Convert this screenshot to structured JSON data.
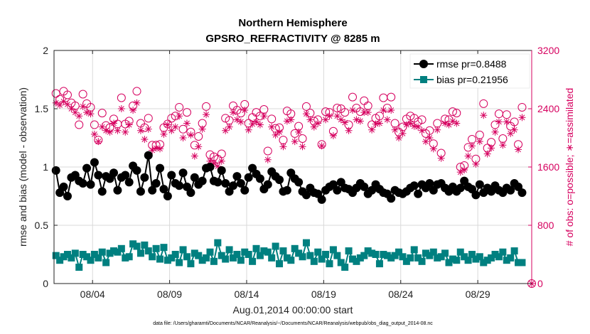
{
  "chart_data": {
    "type": "line",
    "title": "Northern Hemisphere",
    "subtitle": "GPSRO_REFRACTIVITY @ 8285 m",
    "xlabel": "Aug.01,2014 00:00:00 start",
    "ylabel": "rmse and bias (model - observation)",
    "y2label": "# of obs: o=possible; ∗=assimilated",
    "footnote": "data file: /Users/gharamti/Documents/NCAR/Reanalysis/~/Documents/NCAR/Reanalysis/webpub/obs_diag_output_2014-08.nc",
    "xlim": [
      1.5,
      32.5
    ],
    "ylim": [
      0,
      2
    ],
    "y2lim": [
      0,
      3200
    ],
    "x_ticks": [
      4,
      9,
      14,
      19,
      24,
      29
    ],
    "x_tick_labels": [
      "08/04",
      "08/09",
      "08/14",
      "08/19",
      "08/24",
      "08/29"
    ],
    "y_ticks": [
      0,
      0.5,
      1,
      1.5,
      2
    ],
    "y_tick_labels": [
      "0",
      "0.5",
      "1",
      "1.5",
      "2"
    ],
    "y2_ticks": [
      0,
      800,
      1600,
      2400,
      3200
    ],
    "y2_tick_labels": [
      "0",
      "800",
      "1600",
      "2400",
      "3200"
    ],
    "grid": true,
    "legend_position": "top-right",
    "colors": {
      "rmse": "#000000",
      "bias": "#008080",
      "obs": "#d6005f",
      "grid": "#d9d9d9",
      "axis": "#222222"
    },
    "x": [
      1.625,
      1.875,
      2.125,
      2.375,
      2.625,
      2.875,
      3.125,
      3.375,
      3.625,
      3.875,
      4.125,
      4.375,
      4.625,
      4.875,
      5.125,
      5.375,
      5.625,
      5.875,
      6.125,
      6.375,
      6.625,
      6.875,
      7.125,
      7.375,
      7.625,
      7.875,
      8.125,
      8.375,
      8.625,
      8.875,
      9.125,
      9.375,
      9.625,
      9.875,
      10.125,
      10.375,
      10.625,
      10.875,
      11.125,
      11.375,
      11.625,
      11.875,
      12.125,
      12.375,
      12.625,
      12.875,
      13.125,
      13.375,
      13.625,
      13.875,
      14.125,
      14.375,
      14.625,
      14.875,
      15.125,
      15.375,
      15.625,
      15.875,
      16.125,
      16.375,
      16.625,
      16.875,
      17.125,
      17.375,
      17.625,
      17.875,
      18.125,
      18.375,
      18.625,
      18.875,
      19.125,
      19.375,
      19.625,
      19.875,
      20.125,
      20.375,
      20.625,
      20.875,
      21.125,
      21.375,
      21.625,
      21.875,
      22.125,
      22.375,
      22.625,
      22.875,
      23.125,
      23.375,
      23.625,
      23.875,
      24.125,
      24.375,
      24.625,
      24.875,
      25.125,
      25.375,
      25.625,
      25.875,
      26.125,
      26.375,
      26.625,
      26.875,
      27.125,
      27.375,
      27.625,
      27.875,
      28.125,
      28.375,
      28.625,
      28.875,
      29.125,
      29.375,
      29.625,
      29.875,
      30.125,
      30.375,
      30.625,
      30.875,
      31.125,
      31.375,
      31.625,
      31.875
    ],
    "series": [
      {
        "name": "rmse pr=0.8488",
        "axis": "left",
        "marker": "filled-circle",
        "values": [
          0.97,
          0.78,
          0.83,
          0.75,
          0.91,
          0.93,
          0.88,
          0.86,
          0.99,
          0.85,
          1.04,
          0.93,
          0.79,
          0.92,
          0.9,
          0.95,
          0.8,
          0.91,
          0.93,
          0.87,
          1.01,
          0.97,
          0.79,
          0.91,
          1.1,
          0.8,
          0.86,
          0.99,
          0.81,
          0.75,
          0.93,
          0.86,
          0.84,
          0.95,
          0.83,
          0.78,
          0.91,
          0.85,
          0.88,
          0.99,
          1.0,
          0.88,
          0.87,
          0.97,
          0.86,
          0.79,
          0.84,
          0.92,
          0.86,
          0.8,
          0.91,
          0.99,
          0.94,
          0.9,
          0.81,
          0.85,
          0.96,
          0.92,
          0.89,
          0.79,
          0.8,
          0.95,
          0.9,
          0.87,
          0.79,
          0.76,
          0.82,
          0.78,
          0.77,
          0.72,
          0.8,
          0.83,
          0.85,
          0.8,
          0.87,
          0.82,
          0.81,
          0.78,
          0.82,
          0.86,
          0.83,
          0.77,
          0.8,
          0.85,
          0.81,
          0.78,
          0.77,
          0.73,
          0.8,
          0.78,
          0.77,
          0.79,
          0.82,
          0.84,
          0.77,
          0.85,
          0.82,
          0.86,
          0.8,
          0.85,
          0.86,
          0.82,
          0.79,
          0.83,
          0.79,
          0.82,
          0.88,
          0.83,
          0.81,
          0.76,
          0.85,
          0.78,
          0.82,
          0.79,
          0.84,
          0.8,
          0.78,
          0.82,
          0.8,
          0.86,
          0.83,
          0.78
        ]
      },
      {
        "name": "bias pr=0.21956",
        "axis": "left",
        "marker": "filled-square",
        "values": [
          0.24,
          0.2,
          0.23,
          0.25,
          0.22,
          0.26,
          0.14,
          0.25,
          0.23,
          0.2,
          0.25,
          0.22,
          0.27,
          0.18,
          0.26,
          0.28,
          0.27,
          0.3,
          0.22,
          0.23,
          0.34,
          0.32,
          0.26,
          0.33,
          0.28,
          0.23,
          0.3,
          0.21,
          0.31,
          0.2,
          0.22,
          0.25,
          0.18,
          0.29,
          0.23,
          0.17,
          0.26,
          0.24,
          0.2,
          0.22,
          0.27,
          0.19,
          0.35,
          0.24,
          0.21,
          0.29,
          0.22,
          0.25,
          0.2,
          0.27,
          0.25,
          0.19,
          0.3,
          0.24,
          0.28,
          0.27,
          0.22,
          0.32,
          0.17,
          0.28,
          0.22,
          0.2,
          0.3,
          0.26,
          0.23,
          0.35,
          0.24,
          0.19,
          0.27,
          0.21,
          0.25,
          0.17,
          0.29,
          0.24,
          0.18,
          0.14,
          0.28,
          0.21,
          0.19,
          0.22,
          0.24,
          0.28,
          0.26,
          0.25,
          0.17,
          0.25,
          0.24,
          0.22,
          0.24,
          0.27,
          0.23,
          0.19,
          0.22,
          0.29,
          0.22,
          0.19,
          0.26,
          0.24,
          0.27,
          0.22,
          0.23,
          0.26,
          0.18,
          0.21,
          0.2,
          0.27,
          0.23,
          0.2,
          0.25,
          0.21,
          0.23,
          0.18,
          0.2,
          0.22,
          0.25,
          0.23,
          0.27,
          0.2,
          0.22,
          0.28,
          0.18,
          0.18
        ]
      },
      {
        "name": "possible obs",
        "axis": "right",
        "marker": "open-circle",
        "values": [
          2610,
          2530,
          2640,
          2590,
          2480,
          2440,
          2180,
          2600,
          2470,
          2420,
          2180,
          1970,
          2340,
          2170,
          2140,
          2260,
          2190,
          2550,
          2190,
          2230,
          2440,
          2640,
          2200,
          2140,
          2270,
          1900,
          1900,
          1910,
          2140,
          2190,
          2270,
          2300,
          2420,
          2120,
          2350,
          2080,
          1900,
          2020,
          2200,
          2430,
          1770,
          1740,
          1710,
          1780,
          2270,
          2240,
          2440,
          2380,
          2340,
          2460,
          2200,
          2280,
          2350,
          2300,
          2390,
          1820,
          2260,
          2130,
          2140,
          1970,
          2370,
          2330,
          2060,
          2160,
          1990,
          2430,
          2340,
          2230,
          2250,
          1910,
          2360,
          2350,
          2090,
          2410,
          2400,
          2350,
          2180,
          2560,
          2410,
          2360,
          2510,
          2440,
          2180,
          2270,
          2300,
          2550,
          2410,
          2560,
          2200,
          2080,
          2150,
          2260,
          2300,
          2270,
          2220,
          2250,
          2060,
          2100,
          1920,
          2200,
          1790,
          2260,
          2250,
          2360,
          2340,
          1600,
          1620,
          1870,
          1980,
          1710,
          2040,
          2470,
          1860,
          1940,
          2180,
          2330,
          1990,
          2320,
          2160,
          2220,
          1910,
          2420
        ]
      },
      {
        "name": "assimilated obs",
        "axis": "right",
        "marker": "asterisk",
        "values": [
          2480,
          2450,
          2500,
          2460,
          2400,
          2350,
          2300,
          2430,
          2350,
          2330,
          2050,
          1950,
          2150,
          2100,
          2080,
          2200,
          2100,
          2400,
          2080,
          2180,
          2380,
          2480,
          2100,
          1980,
          2120,
          1830,
          1860,
          1850,
          2050,
          2180,
          2100,
          2150,
          2300,
          2000,
          2200,
          2040,
          1750,
          1880,
          2120,
          2320,
          1680,
          1650,
          1610,
          1680,
          2100,
          2150,
          2350,
          2250,
          2220,
          2380,
          2110,
          2190,
          2220,
          2180,
          2300,
          1700,
          2150,
          2040,
          2080,
          1880,
          2230,
          2250,
          1950,
          2080,
          1880,
          2330,
          2250,
          2150,
          2200,
          1890,
          2250,
          2300,
          2030,
          2300,
          2250,
          2210,
          2100,
          2380,
          2250,
          2230,
          2350,
          2350,
          2110,
          2190,
          2200,
          2380,
          2250,
          2380,
          2110,
          2000,
          2060,
          2180,
          2200,
          2160,
          2150,
          2100,
          1950,
          2000,
          1850,
          2110,
          1720,
          2200,
          2180,
          2230,
          2200,
          1530,
          1560,
          1750,
          1890,
          1640,
          1950,
          2310,
          1780,
          1860,
          2080,
          2220,
          1900,
          2220,
          2060,
          2110,
          1840,
          2280
        ]
      }
    ],
    "final_point": {
      "x": 32.5,
      "possible": 0,
      "assimilated": 0
    }
  }
}
